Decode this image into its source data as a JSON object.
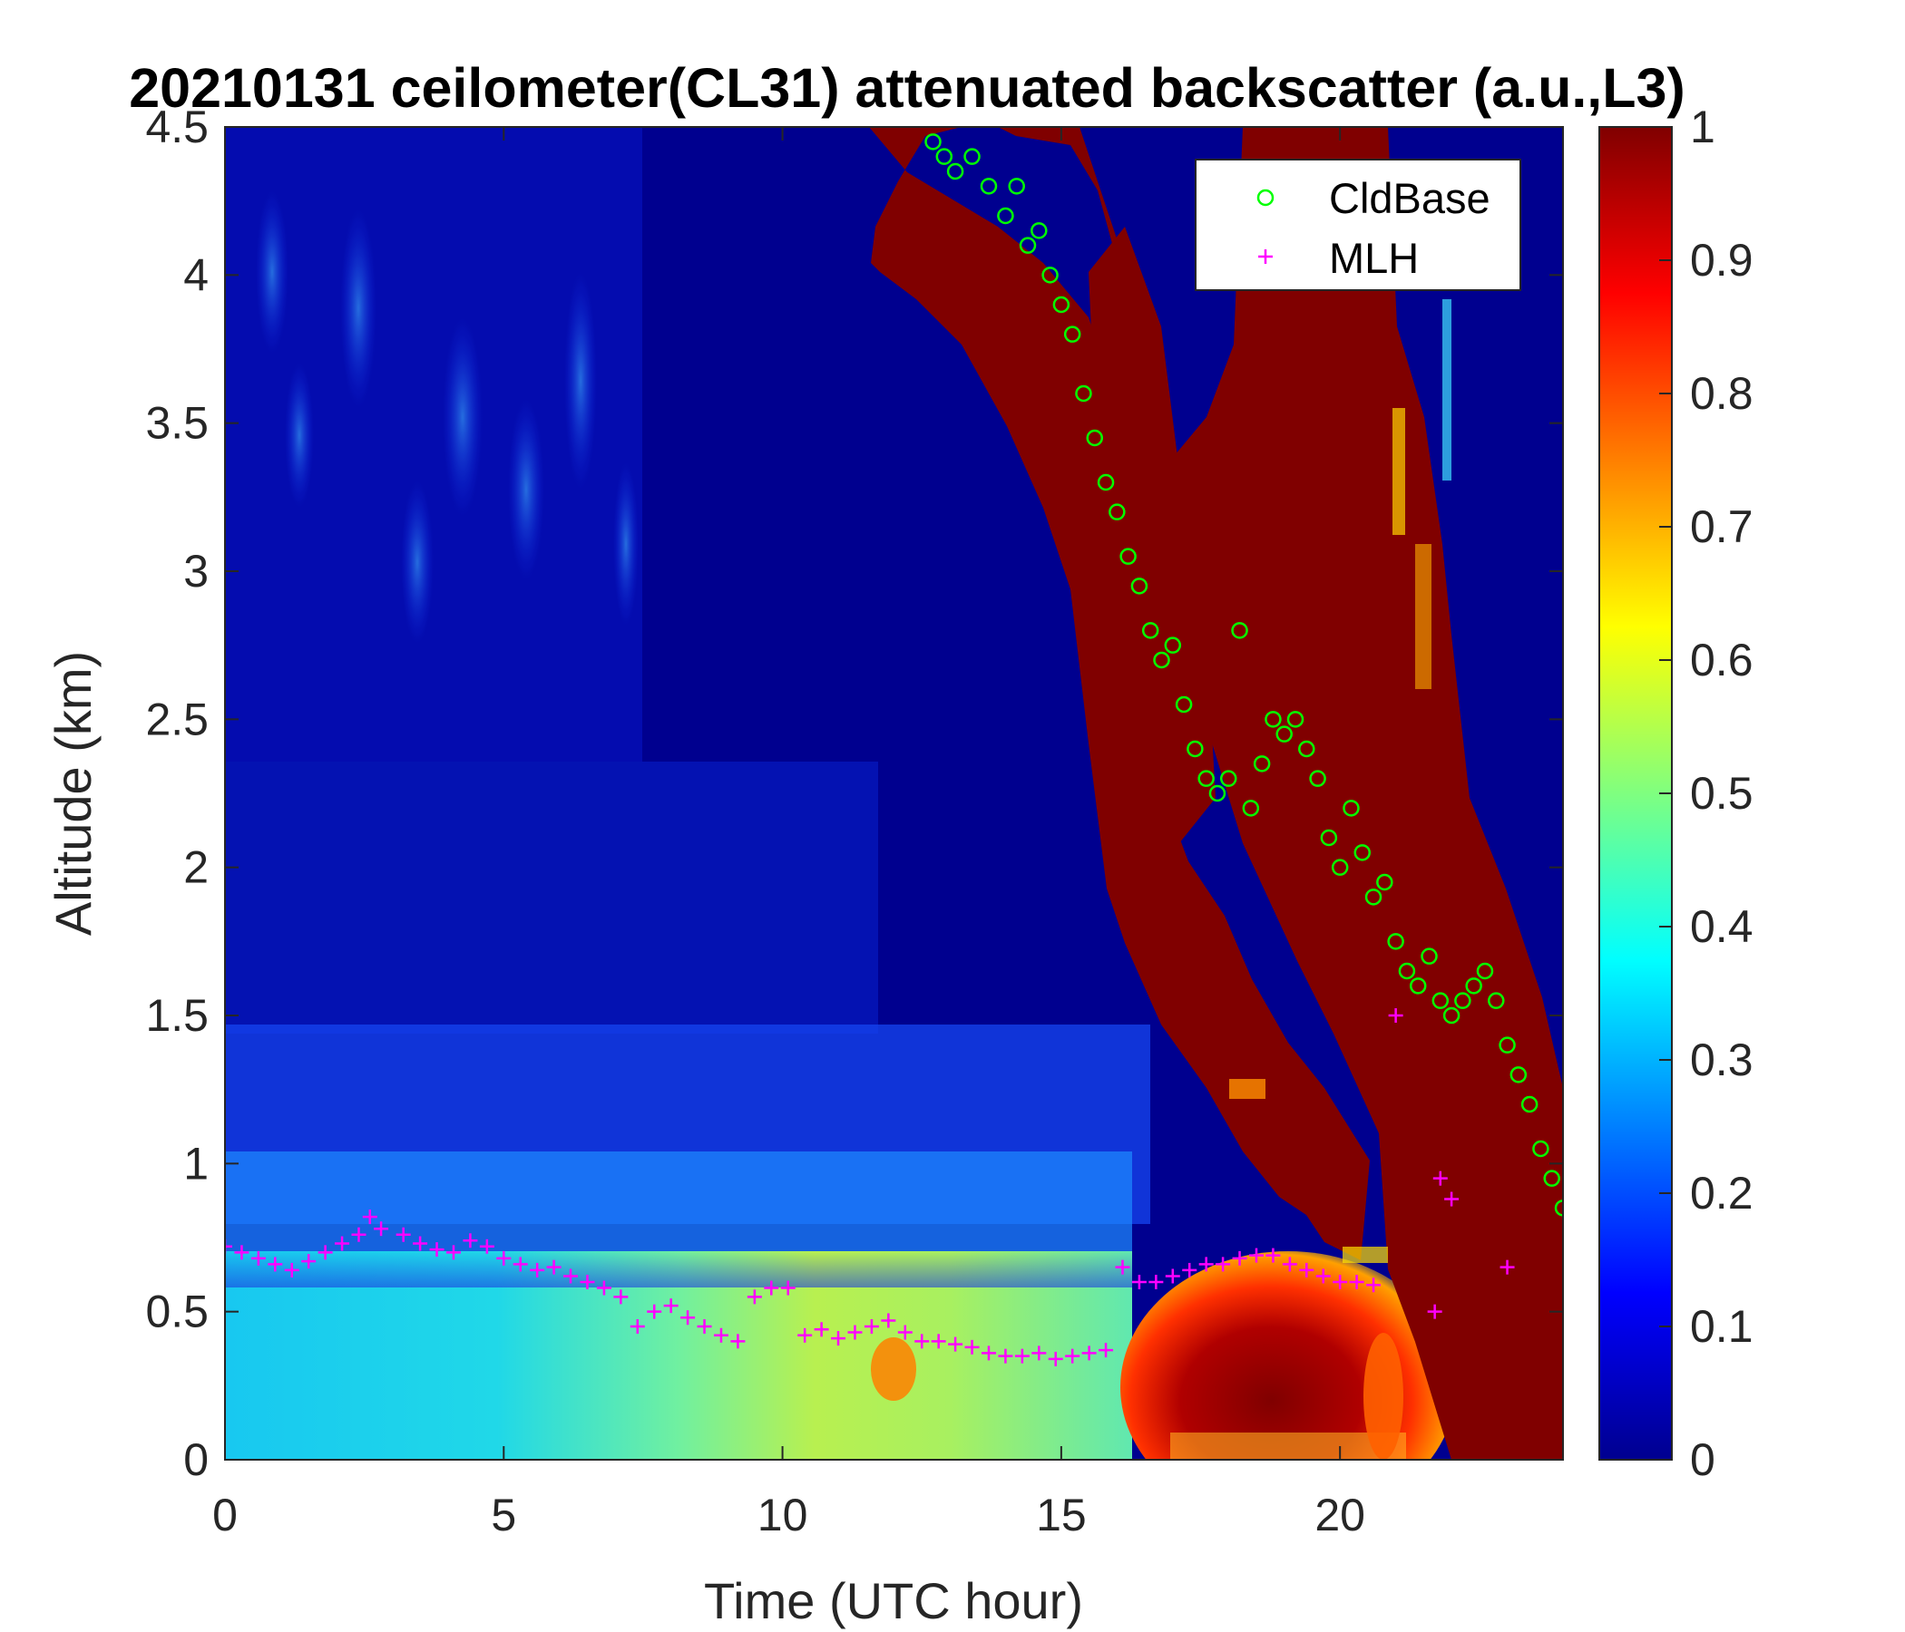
{
  "chart_data": {
    "type": "heatmap",
    "title": "20210131 ceilometer(CL31) attenuated backscatter (a.u.,L3)",
    "xlabel": "Time (UTC hour)",
    "ylabel": "Altitude (km)",
    "xlim": [
      0,
      24
    ],
    "ylim": [
      0,
      4.5
    ],
    "xticks": [
      "0",
      "5",
      "10",
      "15",
      "20"
    ],
    "yticks": [
      "0",
      "0.5",
      "1",
      "1.5",
      "2",
      "2.5",
      "3",
      "3.5",
      "4",
      "4.5"
    ],
    "colorbar": {
      "colormap": "jet",
      "clim": [
        0,
        1
      ],
      "ticks": [
        "0",
        "0.1",
        "0.2",
        "0.3",
        "0.4",
        "0.5",
        "0.6",
        "0.7",
        "0.8",
        "0.9",
        "1"
      ]
    },
    "legend": {
      "position": "top-right",
      "entries": [
        {
          "label": "CldBase",
          "marker": "circle",
          "color": "#00ff00"
        },
        {
          "label": "MLH",
          "marker": "plus",
          "color": "#ff00ff"
        }
      ]
    },
    "heatmap_features": [
      {
        "name": "boundary-layer aerosol",
        "x_range": [
          0,
          16
        ],
        "y_range": [
          0,
          0.7
        ],
        "value_range": [
          0.3,
          0.6
        ]
      },
      {
        "name": "mid-level cloud band",
        "x_range": [
          11.5,
          24
        ],
        "y_range": [
          0.6,
          4.5
        ],
        "value": 1
      },
      {
        "name": "afternoon boundary layer",
        "x_range": [
          16,
          21
        ],
        "y_range": [
          0,
          0.65
        ],
        "value_range": [
          0.7,
          1
        ]
      }
    ],
    "series": [
      {
        "name": "CldBase",
        "marker": "circle",
        "color": "#00ff00",
        "x": [
          12.7,
          12.9,
          13.1,
          13.4,
          13.7,
          14.0,
          14.2,
          14.4,
          14.6,
          14.8,
          15.0,
          15.2,
          15.4,
          15.6,
          15.8,
          16.0,
          16.2,
          16.4,
          16.6,
          16.8,
          17.0,
          17.2,
          17.4,
          17.6,
          17.8,
          18.0,
          18.2,
          18.4,
          18.6,
          18.8,
          19.0,
          19.2,
          19.4,
          19.6,
          19.8,
          20.0,
          20.2,
          20.4,
          20.6,
          20.8,
          21.0,
          21.2,
          21.4,
          21.6,
          21.8,
          22.0,
          22.2,
          22.4,
          22.6,
          22.8,
          23.0,
          23.2,
          23.4,
          23.6,
          23.8,
          24.0
        ],
        "y": [
          4.45,
          4.4,
          4.35,
          4.4,
          4.3,
          4.2,
          4.3,
          4.1,
          4.15,
          4.0,
          3.9,
          3.8,
          3.6,
          3.45,
          3.3,
          3.2,
          3.05,
          2.95,
          2.8,
          2.7,
          2.75,
          2.55,
          2.4,
          2.3,
          2.25,
          2.3,
          2.8,
          2.2,
          2.35,
          2.5,
          2.45,
          2.5,
          2.4,
          2.3,
          2.1,
          2.0,
          2.2,
          2.05,
          1.9,
          1.95,
          1.75,
          1.65,
          1.6,
          1.7,
          1.55,
          1.5,
          1.55,
          1.6,
          1.65,
          1.55,
          1.4,
          1.3,
          1.2,
          1.05,
          0.95,
          0.85
        ]
      },
      {
        "name": "MLH",
        "marker": "plus",
        "color": "#ff00ff",
        "x": [
          0.0,
          0.3,
          0.6,
          0.9,
          1.2,
          1.5,
          1.8,
          2.1,
          2.4,
          2.6,
          2.8,
          3.2,
          3.5,
          3.8,
          4.1,
          4.4,
          4.7,
          5.0,
          5.3,
          5.6,
          5.9,
          6.2,
          6.5,
          6.8,
          7.1,
          7.4,
          7.7,
          8.0,
          8.3,
          8.6,
          8.9,
          9.2,
          9.5,
          9.8,
          10.1,
          10.4,
          10.7,
          11.0,
          11.3,
          11.6,
          11.9,
          12.2,
          12.5,
          12.8,
          13.1,
          13.4,
          13.7,
          14.0,
          14.3,
          14.6,
          14.9,
          15.2,
          15.5,
          15.8,
          16.1,
          16.4,
          16.7,
          17.0,
          17.3,
          17.6,
          17.9,
          18.2,
          18.5,
          18.8,
          19.1,
          19.4,
          19.7,
          20.0,
          20.3,
          20.6,
          21.0,
          21.7,
          21.8,
          22.0,
          23.0
        ],
        "y": [
          0.72,
          0.7,
          0.68,
          0.66,
          0.64,
          0.67,
          0.7,
          0.73,
          0.76,
          0.82,
          0.78,
          0.76,
          0.73,
          0.71,
          0.7,
          0.74,
          0.72,
          0.68,
          0.66,
          0.64,
          0.65,
          0.62,
          0.6,
          0.58,
          0.55,
          0.45,
          0.5,
          0.52,
          0.48,
          0.45,
          0.42,
          0.4,
          0.55,
          0.58,
          0.58,
          0.42,
          0.44,
          0.41,
          0.43,
          0.45,
          0.47,
          0.43,
          0.4,
          0.4,
          0.39,
          0.38,
          0.36,
          0.35,
          0.35,
          0.36,
          0.34,
          0.35,
          0.36,
          0.37,
          0.65,
          0.6,
          0.6,
          0.62,
          0.64,
          0.66,
          0.66,
          0.68,
          0.69,
          0.69,
          0.66,
          0.64,
          0.62,
          0.6,
          0.6,
          0.59,
          1.5,
          0.5,
          0.95,
          0.88,
          0.65
        ]
      }
    ]
  }
}
